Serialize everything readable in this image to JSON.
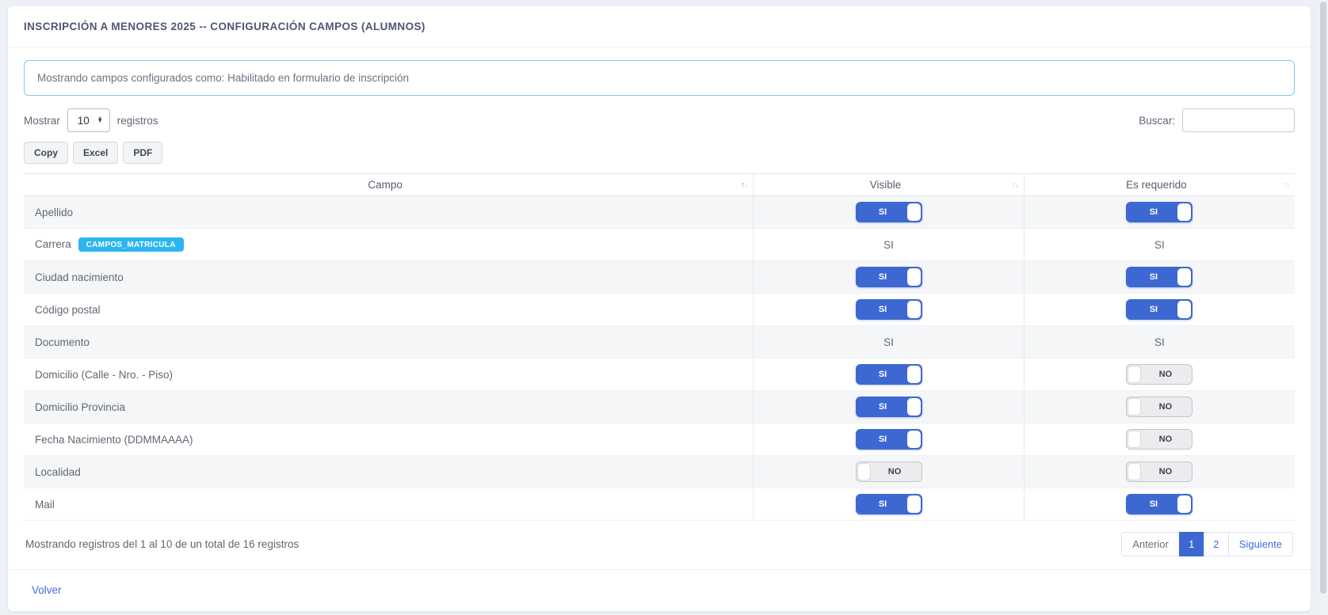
{
  "page": {
    "title": "INSCRIPCIÓN A MENORES 2025 -- CONFIGURACIÓN CAMPOS (ALUMNOS)",
    "info_message": "Mostrando campos configurados como: Habilitado en formulario de inscripción",
    "back_link": "Volver"
  },
  "controls": {
    "show_label": "Mostrar",
    "show_value": "10",
    "records_label": "registros",
    "search_label": "Buscar:",
    "search_value": "",
    "export_buttons": [
      "Copy",
      "Excel",
      "PDF"
    ]
  },
  "table": {
    "columns": [
      "Campo",
      "Visible",
      "Es requerido"
    ],
    "sorted_column": "Campo",
    "sort_direction": "asc",
    "rows": [
      {
        "campo": "Apellido",
        "badge": null,
        "visible": {
          "type": "toggle",
          "value": "SI"
        },
        "requerido": {
          "type": "toggle",
          "value": "SI"
        }
      },
      {
        "campo": "Carrera",
        "badge": "CAMPOS_MATRICULA",
        "visible": {
          "type": "text",
          "value": "SI"
        },
        "requerido": {
          "type": "text",
          "value": "SI"
        }
      },
      {
        "campo": "Ciudad nacimiento",
        "badge": null,
        "visible": {
          "type": "toggle",
          "value": "SI"
        },
        "requerido": {
          "type": "toggle",
          "value": "SI"
        }
      },
      {
        "campo": "Código postal",
        "badge": null,
        "visible": {
          "type": "toggle",
          "value": "SI"
        },
        "requerido": {
          "type": "toggle",
          "value": "SI"
        }
      },
      {
        "campo": "Documento",
        "badge": null,
        "visible": {
          "type": "text",
          "value": "SI"
        },
        "requerido": {
          "type": "text",
          "value": "SI"
        }
      },
      {
        "campo": "Domicilio (Calle - Nro. - Piso)",
        "badge": null,
        "visible": {
          "type": "toggle",
          "value": "SI"
        },
        "requerido": {
          "type": "toggle",
          "value": "NO"
        }
      },
      {
        "campo": "Domicilio Provincia",
        "badge": null,
        "visible": {
          "type": "toggle",
          "value": "SI"
        },
        "requerido": {
          "type": "toggle",
          "value": "NO"
        }
      },
      {
        "campo": "Fecha Nacimiento (DDMMAAAA)",
        "badge": null,
        "visible": {
          "type": "toggle",
          "value": "SI"
        },
        "requerido": {
          "type": "toggle",
          "value": "NO"
        }
      },
      {
        "campo": "Localidad",
        "badge": null,
        "visible": {
          "type": "toggle",
          "value": "NO"
        },
        "requerido": {
          "type": "toggle",
          "value": "NO"
        }
      },
      {
        "campo": "Mail",
        "badge": null,
        "visible": {
          "type": "toggle",
          "value": "SI"
        },
        "requerido": {
          "type": "toggle",
          "value": "SI"
        }
      }
    ]
  },
  "footer": {
    "summary": "Mostrando registros del 1 al 10 de un total de 16 registros",
    "pagination": {
      "prev": "Anterior",
      "pages": [
        "1",
        "2"
      ],
      "active_page": "1",
      "next": "Siguiente"
    }
  },
  "theme": {
    "accent_blue": "#3e68d1",
    "badge_cyan": "#2cb5f2",
    "info_border": "#84c8ec",
    "link_blue": "#4169e0",
    "page_bg": "#edf1f6",
    "stripe": "#f5f6f8",
    "toggle_off_bg": "#ececee",
    "toggle_off_border": "#c2c6ca"
  }
}
